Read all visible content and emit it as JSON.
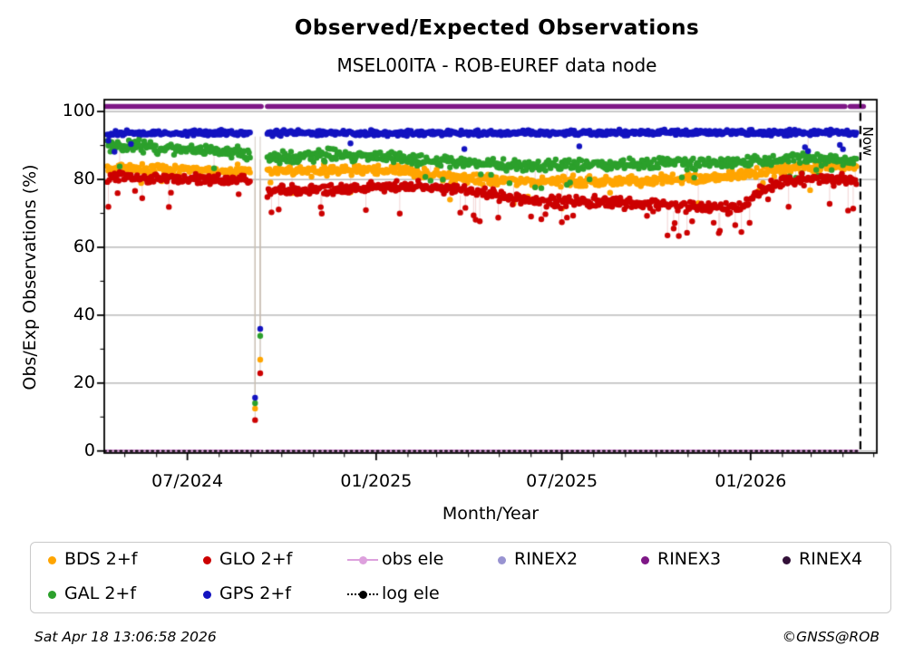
{
  "header": {
    "title": "Observed/Expected Observations",
    "subtitle": "MSEL00ITA - ROB-EUREF data node"
  },
  "footer": {
    "timestamp": "Sat Apr 18 13:06:58 2026",
    "copyright": "©GNSS@ROB"
  },
  "now_label": "Now",
  "colors": {
    "bds": "#FFA500",
    "glo": "#CC0000",
    "gal": "#2CA02C",
    "gps": "#1313C0",
    "obs_ele": "#DDA0DD",
    "log_ele": "#000000",
    "rinex2": "#9893D1",
    "rinex3": "#7E1786",
    "rinex4": "#321038",
    "grid": "#ABABAB",
    "axis": "#000000"
  },
  "legend": {
    "entries": [
      {
        "label": "BDS 2+f",
        "marker": "dot",
        "color": "#FFA500"
      },
      {
        "label": "GAL 2+f",
        "marker": "dot",
        "color": "#2CA02C"
      },
      {
        "label": "GLO 2+f",
        "marker": "dot",
        "color": "#CC0000"
      },
      {
        "label": "GPS 2+f",
        "marker": "dot",
        "color": "#1313C0"
      },
      {
        "label": "obs ele",
        "marker": "line-dot",
        "color": "#DDA0DD"
      },
      {
        "label": "log ele",
        "marker": "dash-dot",
        "color": "#000000"
      },
      {
        "label": "RINEX2",
        "marker": "dot",
        "color": "#9893D1"
      },
      {
        "label": "RINEX3",
        "marker": "dot",
        "color": "#7E1786"
      },
      {
        "label": "RINEX4",
        "marker": "dot",
        "color": "#321038"
      }
    ]
  },
  "chart_data": {
    "type": "scatter",
    "title": "Observed/Expected Observations",
    "subtitle": "MSEL00ITA - ROB-EUREF data node",
    "xlabel": "Month/Year",
    "ylabel": "Obs/Exp Observations (%)",
    "grid": "horizontal-major",
    "x_axis": {
      "start_date": "2024-04-11",
      "end_date": "2026-05-04",
      "major_ticks": [
        "2024-07-01",
        "2025-01-01",
        "2025-07-01",
        "2026-01-01"
      ],
      "major_tick_labels": [
        "07/2024",
        "01/2025",
        "07/2025",
        "01/2026"
      ],
      "minor_tick_interval": "month"
    },
    "y_axis": {
      "min": -0.6,
      "max": 103.5,
      "major_ticks": [
        0,
        20,
        40,
        60,
        80,
        100
      ],
      "minor_ticks": [
        10,
        30,
        50,
        70,
        90
      ]
    },
    "now_line": {
      "date": "2026-04-18",
      "label": "Now",
      "style": "black-dashed"
    },
    "series": [
      {
        "name": "BDS 2+f",
        "color": "#FFA500",
        "start": "2024-04-14",
        "end": "2026-04-14",
        "mean_keyframes": [
          [
            "2024-04-14",
            83.3
          ],
          [
            "2024-09-01",
            82.3
          ],
          [
            "2024-12-01",
            82.8
          ],
          [
            "2025-02-01",
            82.5
          ],
          [
            "2025-04-01",
            80.2
          ],
          [
            "2025-06-01",
            79.3
          ],
          [
            "2025-09-15",
            79.6
          ],
          [
            "2025-12-01",
            80.6
          ],
          [
            "2026-01-20",
            82.6
          ],
          [
            "2026-03-01",
            83.6
          ],
          [
            "2026-04-14",
            84.0
          ]
        ],
        "spread": 1.7,
        "outliers": {
          "prob": 0.03,
          "min_drop": 3,
          "max_drop": 8
        },
        "gaps": [
          [
            "2024-09-01",
            "2024-09-16"
          ]
        ],
        "dip_points": [
          [
            "2024-09-05",
            12.5
          ],
          [
            "2024-09-10",
            26.9
          ]
        ]
      },
      {
        "name": "GAL 2+f",
        "color": "#2CA02C",
        "start": "2024-04-14",
        "end": "2026-04-14",
        "mean_keyframes": [
          [
            "2024-04-14",
            90.2
          ],
          [
            "2024-08-20",
            88.0
          ],
          [
            "2024-09-17",
            86.5
          ],
          [
            "2024-11-15",
            87.2
          ],
          [
            "2025-01-20",
            86.3
          ],
          [
            "2025-04-01",
            84.8
          ],
          [
            "2025-07-01",
            84.0
          ],
          [
            "2025-10-01",
            84.6
          ],
          [
            "2026-01-01",
            85.3
          ],
          [
            "2026-02-20",
            86.3
          ],
          [
            "2026-04-14",
            85.6
          ]
        ],
        "spread": 2.0,
        "outliers": {
          "prob": 0.035,
          "min_drop": 3,
          "max_drop": 7
        },
        "gaps": [
          [
            "2024-09-01",
            "2024-09-16"
          ]
        ],
        "dip_points": [
          [
            "2024-09-05",
            14.1
          ],
          [
            "2024-09-10",
            33.9
          ]
        ]
      },
      {
        "name": "GLO 2+f",
        "color": "#CC0000",
        "start": "2024-04-14",
        "end": "2026-04-14",
        "mean_keyframes": [
          [
            "2024-04-14",
            80.6
          ],
          [
            "2024-08-28",
            79.8
          ],
          [
            "2024-09-18",
            76.6
          ],
          [
            "2024-11-20",
            77.0
          ],
          [
            "2025-02-01",
            78.2
          ],
          [
            "2025-04-10",
            76.4
          ],
          [
            "2025-06-01",
            73.6
          ],
          [
            "2025-09-01",
            73.2
          ],
          [
            "2025-11-10",
            71.6
          ],
          [
            "2025-12-25",
            71.8
          ],
          [
            "2026-01-20",
            78.6
          ],
          [
            "2026-03-01",
            80.1
          ],
          [
            "2026-04-14",
            79.6
          ]
        ],
        "spread": 1.8,
        "outliers": {
          "prob": 0.05,
          "min_drop": 3,
          "max_drop": 9
        },
        "outlier_windows": [
          [
            "2024-09-01",
            "2024-11-20",
            1.6
          ],
          [
            "2025-10-01",
            "2026-01-05",
            2.0
          ]
        ],
        "gaps": [
          [
            "2024-09-01",
            "2024-09-16"
          ]
        ],
        "dip_points": [
          [
            "2024-09-05",
            9.1
          ],
          [
            "2024-09-10",
            22.9
          ]
        ]
      },
      {
        "name": "GPS 2+f",
        "color": "#1313C0",
        "start": "2024-04-14",
        "end": "2026-04-14",
        "mean_keyframes": [
          [
            "2024-04-14",
            93.6
          ],
          [
            "2026-04-14",
            93.8
          ]
        ],
        "spread": 0.9,
        "outliers": {
          "prob": 0.01,
          "min_drop": 2,
          "max_drop": 5.5
        },
        "gaps": [
          [
            "2024-09-01",
            "2024-09-16"
          ]
        ],
        "dip_points": [
          [
            "2024-09-05",
            15.7
          ],
          [
            "2024-09-10",
            36.0
          ]
        ]
      }
    ],
    "flat_lines": [
      {
        "name": "RINEX3",
        "color": "#7E1786",
        "value": 101.5,
        "width": 5.5,
        "segments": [
          [
            "2024-04-12",
            "2024-09-11"
          ],
          [
            "2024-09-17",
            "2026-04-03"
          ],
          [
            "2026-04-08",
            "2026-04-21"
          ]
        ]
      },
      {
        "name": "obs ele",
        "color": "#DDA0DD",
        "value": 0,
        "width": 3.4,
        "segments": [
          [
            "2024-04-11",
            "2024-09-12"
          ],
          [
            "2024-09-16",
            "2026-04-15"
          ]
        ]
      },
      {
        "name": "log ele",
        "color": "#000000",
        "value": 0,
        "width": 2,
        "dash": [
          2,
          3.8
        ],
        "segments": [
          [
            "2024-04-11",
            "2024-09-12"
          ],
          [
            "2024-09-16",
            "2026-04-15"
          ]
        ]
      }
    ],
    "notes": "RINEX2 and RINEX4 appear in legend only; no visible data points."
  }
}
